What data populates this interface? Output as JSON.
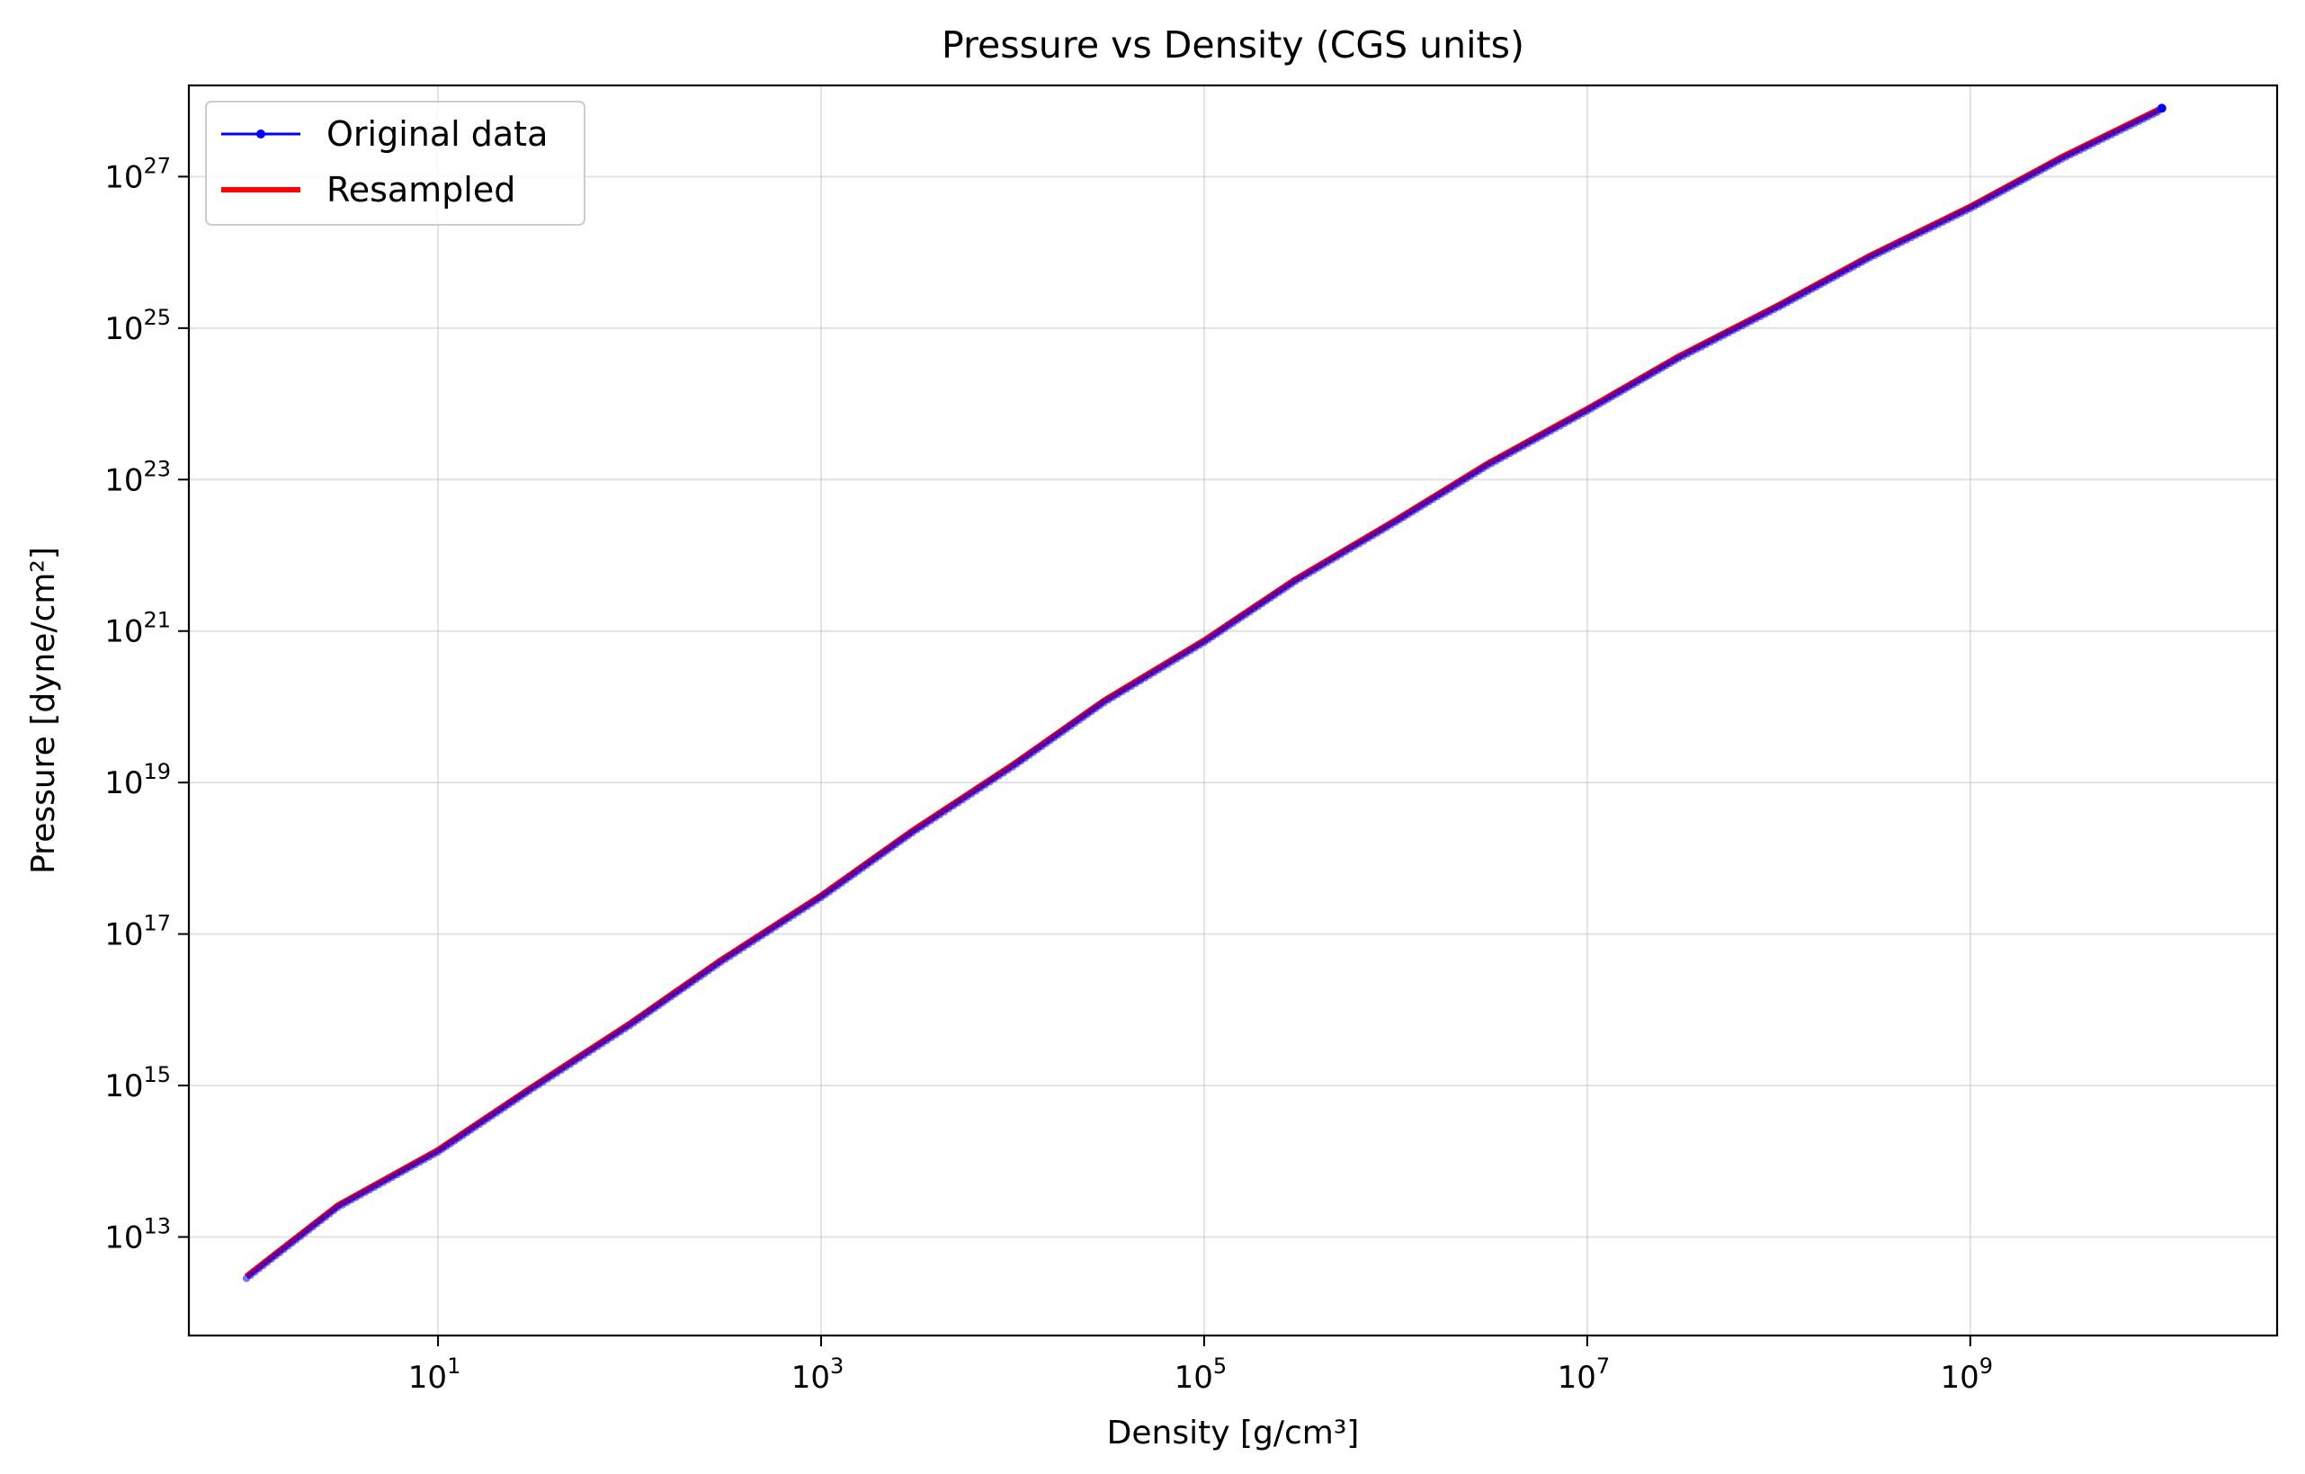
{
  "chart_data": {
    "type": "line",
    "title": "Pressure vs Density (CGS units)",
    "xlabel": "Density [g/cm³]",
    "ylabel": "Pressure [dyne/cm²]",
    "xscale": "log",
    "yscale": "log",
    "xlim": [
      0.5,
      40000000000
    ],
    "ylim": [
      500000000000.0,
      1.6e+28
    ],
    "x_ticks": [
      {
        "base": "10",
        "exp": "1",
        "value": 10
      },
      {
        "base": "10",
        "exp": "3",
        "value": 1000
      },
      {
        "base": "10",
        "exp": "5",
        "value": 100000
      },
      {
        "base": "10",
        "exp": "7",
        "value": 10000000
      },
      {
        "base": "10",
        "exp": "9",
        "value": 1000000000
      }
    ],
    "y_ticks": [
      {
        "base": "10",
        "exp": "13",
        "value": 10000000000000.0
      },
      {
        "base": "10",
        "exp": "15",
        "value": 1000000000000000.0
      },
      {
        "base": "10",
        "exp": "17",
        "value": 1e+17
      },
      {
        "base": "10",
        "exp": "19",
        "value": 1e+19
      },
      {
        "base": "10",
        "exp": "21",
        "value": 1e+21
      },
      {
        "base": "10",
        "exp": "23",
        "value": 1e+23
      },
      {
        "base": "10",
        "exp": "25",
        "value": 1e+25
      },
      {
        "base": "10",
        "exp": "27",
        "value": 1e+27
      }
    ],
    "grid": true,
    "legend_position": "top-left",
    "series": [
      {
        "name": "Original data",
        "color": "#0000ff",
        "marker": "dot",
        "x": [
          1,
          3,
          10,
          30,
          100,
          300,
          1000,
          3000,
          10000,
          30000,
          100000,
          300000,
          1000000,
          3000000,
          10000000,
          30000000,
          100000000,
          300000000,
          1000000000,
          3000000000,
          10000000000
        ],
        "y": [
          3000000000000.0,
          26000000000000.0,
          140000000000000.0,
          900000000000000.0,
          6500000000000000.0,
          4.5e+16,
          3.2e+17,
          2.3e+18,
          1.7e+19,
          1.2e+20,
          7.5e+20,
          4.8e+21,
          2.9e+22,
          1.6e+23,
          8.5e+23,
          4.2e+24,
          2e+25,
          9e+25,
          4e+26,
          1.8e+27,
          8e+27
        ]
      },
      {
        "name": "Resampled",
        "color": "#ff0000",
        "marker": "none",
        "x": [
          1,
          3,
          10,
          30,
          100,
          300,
          1000,
          3000,
          10000,
          30000,
          100000,
          300000,
          1000000,
          3000000,
          10000000,
          30000000,
          100000000,
          300000000,
          1000000000,
          3000000000,
          10000000000
        ],
        "y": [
          3000000000000.0,
          26000000000000.0,
          140000000000000.0,
          900000000000000.0,
          6500000000000000.0,
          4.5e+16,
          3.2e+17,
          2.3e+18,
          1.7e+19,
          1.2e+20,
          7.5e+20,
          4.8e+21,
          2.9e+22,
          1.6e+23,
          8.5e+23,
          4.2e+24,
          2e+25,
          9e+25,
          4e+26,
          1.8e+27,
          8e+27
        ]
      }
    ]
  }
}
